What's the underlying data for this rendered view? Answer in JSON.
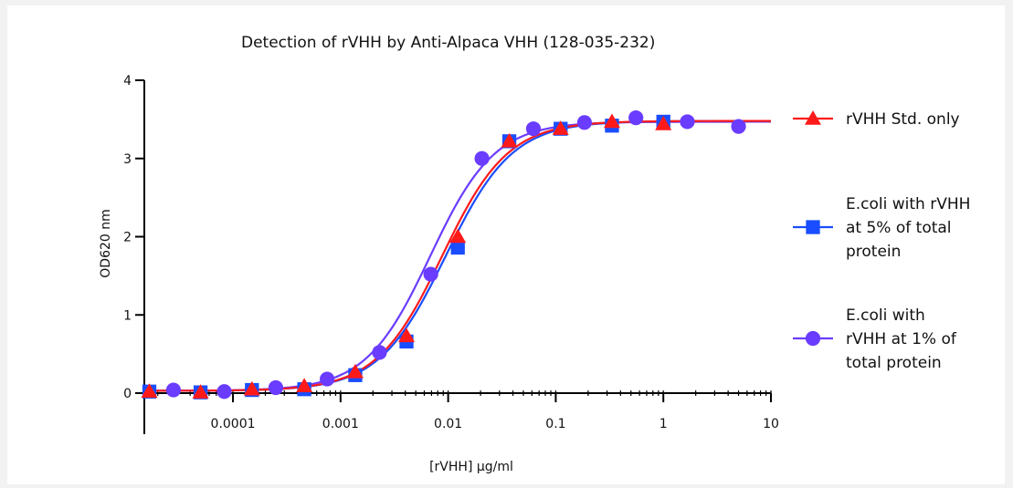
{
  "chart_data": {
    "type": "scatter",
    "title": "Detection of rVHH by Anti-Alpaca VHH (128-035-232)",
    "xlabel": "[rVHH] µg/ml",
    "ylabel": "OD620 nm",
    "x_scale": "log",
    "xlim": [
      1.5e-05,
      10
    ],
    "ylim": [
      0,
      4
    ],
    "x_ticks": [
      0.0001,
      0.001,
      0.01,
      0.1,
      1,
      10
    ],
    "x_tick_labels": [
      "0.0001",
      "0.001",
      "0.01",
      "0.1",
      "1",
      "10"
    ],
    "y_ticks": [
      0,
      1,
      2,
      3,
      4
    ],
    "y_tick_labels": [
      "0",
      "1",
      "2",
      "3",
      "4"
    ],
    "grid": false,
    "legend_position": "right",
    "series": [
      {
        "name": "rVHH Std. only",
        "color": "#ff1a1a",
        "marker": "triangle",
        "fit": {
          "bottom": 0.03,
          "top": 3.48,
          "ec50": 0.0088,
          "hill": 1.42
        },
        "points": [
          [
            1.67e-05,
            0.02
          ],
          [
            5e-05,
            0.01
          ],
          [
            0.00015,
            0.05
          ],
          [
            0.00046,
            0.09
          ],
          [
            0.00137,
            0.27
          ],
          [
            0.0041,
            0.73
          ],
          [
            0.0123,
            2.0
          ],
          [
            0.037,
            3.22
          ],
          [
            0.111,
            3.38
          ],
          [
            0.333,
            3.47
          ],
          [
            1.0,
            3.44
          ]
        ]
      },
      {
        "name": "E.coli with rVHH at 5% of total protein",
        "color": "#1a4dff",
        "marker": "square",
        "fit": {
          "bottom": 0.03,
          "top": 3.48,
          "ec50": 0.0095,
          "hill": 1.4
        },
        "points": [
          [
            1.67e-05,
            0.02
          ],
          [
            5e-05,
            0.01
          ],
          [
            0.00015,
            0.04
          ],
          [
            0.00046,
            0.05
          ],
          [
            0.00137,
            0.23
          ],
          [
            0.0041,
            0.66
          ],
          [
            0.0123,
            1.86
          ],
          [
            0.037,
            3.22
          ],
          [
            0.111,
            3.38
          ],
          [
            0.333,
            3.42
          ],
          [
            1.0,
            3.47
          ]
        ]
      },
      {
        "name": "E.coli with rVHH at 1% of total protein",
        "color": "#6a3cff",
        "marker": "circle",
        "fit": {
          "bottom": 0.03,
          "top": 3.47,
          "ec50": 0.0068,
          "hill": 1.45
        },
        "points": [
          [
            2.8e-05,
            0.04
          ],
          [
            8.3e-05,
            0.02
          ],
          [
            0.00025,
            0.07
          ],
          [
            0.00075,
            0.18
          ],
          [
            0.0023,
            0.52
          ],
          [
            0.0069,
            1.52
          ],
          [
            0.0206,
            3.0
          ],
          [
            0.062,
            3.38
          ],
          [
            0.185,
            3.46
          ],
          [
            0.556,
            3.52
          ],
          [
            1.67,
            3.47
          ],
          [
            5.0,
            3.41
          ]
        ]
      }
    ]
  },
  "legend": {
    "items": [
      {
        "lines": [
          "rVHH Std. only"
        ]
      },
      {
        "lines": [
          "E.coli with rVHH",
          "at 5% of total",
          "protein"
        ]
      },
      {
        "lines": [
          "E.coli with",
          "rVHH at 1% of",
          "total protein"
        ]
      }
    ]
  }
}
